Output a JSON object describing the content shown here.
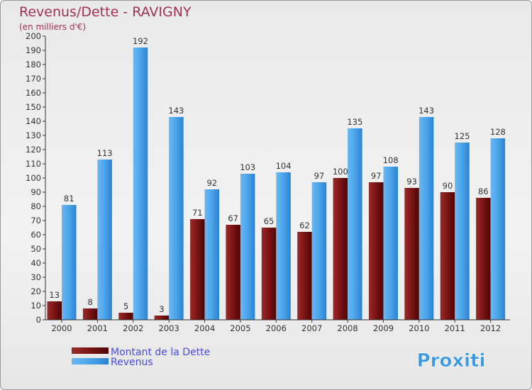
{
  "chart_data": {
    "type": "bar",
    "title": "Revenus/Dette - RAVIGNY",
    "subtitle": "(en milliers d'€)",
    "xlabel": "",
    "ylabel": "",
    "ylim": [
      0,
      200
    ],
    "ytick_step": 10,
    "grid": false,
    "legend_position": "bottom-left",
    "categories": [
      "2000",
      "2001",
      "2002",
      "2003",
      "2004",
      "2005",
      "2006",
      "2007",
      "2008",
      "2009",
      "2010",
      "2011",
      "2012"
    ],
    "series": [
      {
        "name": "Montant de la Dette",
        "color": "#6b0a0a",
        "values": [
          13,
          8,
          5,
          3,
          71,
          67,
          65,
          62,
          100,
          97,
          93,
          90,
          86
        ]
      },
      {
        "name": "Revenus",
        "color": "#3a98e0",
        "values": [
          81,
          113,
          192,
          143,
          92,
          103,
          104,
          97,
          135,
          108,
          143,
          125,
          128
        ]
      }
    ]
  },
  "colors": {
    "title": "#a0305a",
    "legend_text": "#4a4ae0",
    "axis": "#333333",
    "label": "#333333"
  },
  "logo": {
    "text": "Proxiti"
  }
}
